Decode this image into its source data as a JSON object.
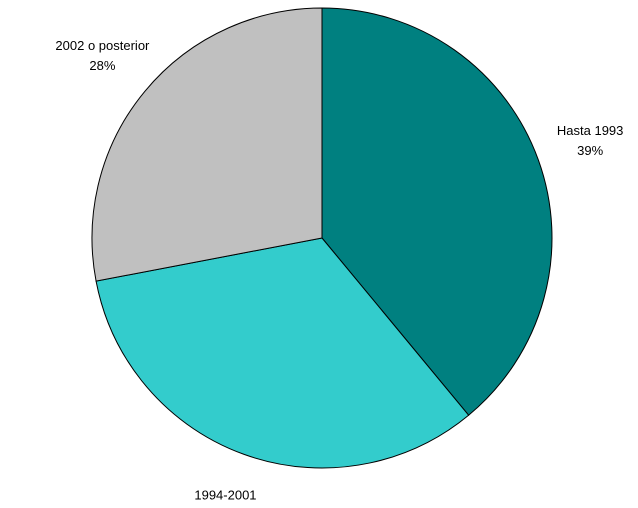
{
  "chart_data": {
    "type": "pie",
    "categories": [
      "Hasta 1993",
      "1994-2001",
      "2002 o posterior"
    ],
    "values": [
      39,
      33,
      28
    ],
    "value_labels": [
      "39%",
      "33%",
      "28%"
    ],
    "colors": [
      "#008080",
      "#33CCCC",
      "#C0C0C0"
    ]
  }
}
